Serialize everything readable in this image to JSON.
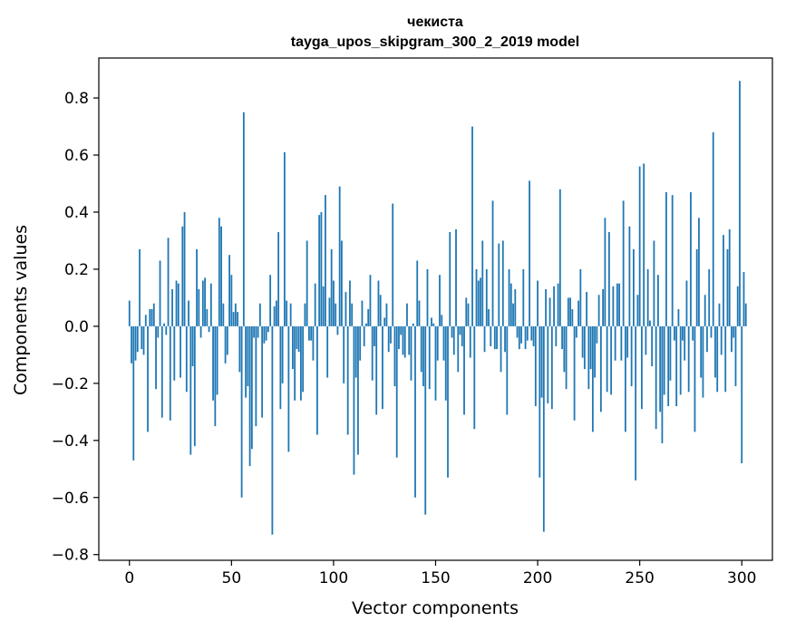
{
  "chart_data": {
    "type": "bar",
    "title": "чекиста",
    "subtitle": "tayga_upos_skipgram_300_2_2019 model",
    "xlabel": "Vector components",
    "ylabel": "Components values",
    "xlim": [
      -15,
      315
    ],
    "ylim": [
      -0.82,
      0.94
    ],
    "xticks": [
      0,
      50,
      100,
      150,
      200,
      250,
      300
    ],
    "yticks": [
      -0.8,
      -0.6,
      -0.4,
      -0.2,
      0.0,
      0.2,
      0.4,
      0.6,
      0.8
    ],
    "ytick_labels": [
      "−0.8",
      "−0.6",
      "−0.4",
      "−0.2",
      "0.0",
      "0.2",
      "0.4",
      "0.6",
      "0.8"
    ],
    "xtick_labels": [
      "0",
      "50",
      "100",
      "150",
      "200",
      "250",
      "300"
    ],
    "bar_color": "#1f77b4",
    "values": [
      0.09,
      -0.13,
      -0.47,
      -0.12,
      -0.09,
      0.27,
      -0.08,
      -0.1,
      0.04,
      -0.37,
      0.06,
      0.06,
      0.08,
      -0.22,
      -0.04,
      0.23,
      -0.32,
      0.01,
      -0.03,
      0.31,
      -0.33,
      0.13,
      -0.19,
      0.16,
      0.15,
      -0.18,
      0.35,
      0.4,
      -0.23,
      0.09,
      -0.45,
      -0.14,
      -0.42,
      0.27,
      0.13,
      -0.04,
      0.16,
      0.17,
      0.06,
      -0.02,
      0.15,
      -0.26,
      -0.35,
      -0.24,
      0.38,
      0.35,
      0.08,
      -0.13,
      -0.1,
      0.25,
      0.18,
      0.05,
      0.08,
      0.05,
      -0.16,
      -0.6,
      0.75,
      -0.25,
      -0.21,
      -0.49,
      -0.43,
      -0.04,
      -0.35,
      -0.04,
      0.08,
      -0.32,
      -0.06,
      -0.05,
      -0.02,
      0.18,
      -0.73,
      0.07,
      0.09,
      0.33,
      -0.29,
      -0.2,
      0.61,
      0.09,
      -0.44,
      0.08,
      -0.15,
      -0.26,
      -0.08,
      -0.09,
      -0.26,
      -0.23,
      0.08,
      0.3,
      -0.05,
      -0.05,
      -0.12,
      0.15,
      -0.38,
      0.39,
      0.4,
      0.14,
      0.46,
      -0.18,
      0.1,
      0.27,
      0.16,
      0.08,
      -0.03,
      0.49,
      0.3,
      -0.2,
      0.12,
      -0.38,
      0.16,
      0.08,
      -0.52,
      -0.18,
      -0.45,
      -0.12,
      0.09,
      -0.07,
      0.01,
      0.06,
      0.18,
      -0.19,
      -0.07,
      -0.31,
      0.16,
      0.11,
      -0.29,
      0.03,
      0.08,
      -0.09,
      -0.06,
      0.43,
      -0.21,
      -0.46,
      -0.08,
      -0.03,
      -0.1,
      -0.11,
      0.08,
      -0.1,
      -0.19,
      0.01,
      -0.6,
      0.23,
      0.09,
      -0.16,
      -0.21,
      -0.66,
      0.2,
      -0.22,
      0.03,
      0.01,
      -0.26,
      -0.12,
      0.18,
      0.04,
      -0.12,
      -0.26,
      -0.53,
      0.33,
      -0.04,
      -0.1,
      0.34,
      -0.16,
      -0.03,
      -0.07,
      -0.31,
      0.1,
      0.08,
      -0.11,
      0.7,
      -0.36,
      0.2,
      0.16,
      0.17,
      0.3,
      -0.09,
      0.2,
      0.06,
      -0.07,
      0.44,
      -0.08,
      -0.08,
      0.29,
      -0.16,
      0.3,
      -0.09,
      -0.31,
      0.2,
      0.15,
      0.08,
      0.13,
      -0.04,
      -0.08,
      -0.06,
      0.2,
      -0.08,
      -0.05,
      0.51,
      -0.05,
      -0.07,
      -0.28,
      0.16,
      -0.53,
      -0.25,
      -0.72,
      0.13,
      -0.27,
      0.1,
      -0.29,
      0.14,
      -0.07,
      0.15,
      0.48,
      -0.08,
      -0.16,
      -0.22,
      0.1,
      0.1,
      0.06,
      -0.33,
      -0.04,
      0.09,
      0.2,
      -0.11,
      -0.15,
      0.12,
      -0.22,
      -0.15,
      -0.37,
      -0.18,
      -0.06,
      0.11,
      -0.3,
      0.13,
      0.38,
      -0.23,
      0.33,
      -0.24,
      0.14,
      -0.12,
      0.15,
      0.15,
      -0.12,
      0.44,
      -0.37,
      -0.11,
      0.35,
      -0.21,
      0.27,
      -0.54,
      0.11,
      0.56,
      -0.29,
      0.57,
      -0.1,
      0.2,
      0.02,
      -0.14,
      0.3,
      -0.36,
      0.18,
      -0.3,
      -0.41,
      -0.24,
      0.47,
      -0.28,
      -0.19,
      0.46,
      -0.05,
      -0.28,
      0.06,
      -0.24,
      -0.05,
      -0.12,
      0.16,
      -0.23,
      0.47,
      -0.05,
      -0.37,
      0.27,
      0.38,
      -0.18,
      -0.25,
      0.11,
      -0.09,
      0.2,
      -0.04,
      0.68,
      -0.18,
      -0.23,
      0.08,
      -0.1,
      0.32,
      -0.23,
      0.27,
      0.34,
      -0.09,
      -0.04,
      -0.21,
      0.14,
      0.86,
      -0.48,
      0.19,
      0.08
    ]
  }
}
